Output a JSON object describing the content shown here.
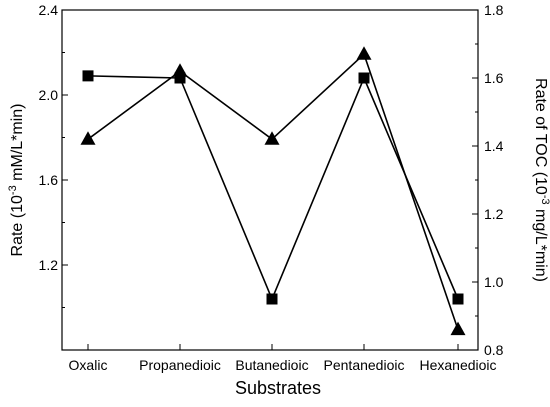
{
  "chart_data": {
    "type": "line",
    "categories": [
      "Oxalic",
      "Propanedioic",
      "Butanedioic",
      "Pentanedioic",
      "Hexanedioic"
    ],
    "xlabel": "Substrates",
    "ylabel_left": {
      "prefix": "Rate (10",
      "sup": "-3",
      "suffix": " mM/L*min)"
    },
    "ylabel_right": {
      "prefix": "Rate of TOC (10",
      "sup": "-3",
      "suffix": " mg/L*min)"
    },
    "ylim_left": [
      0.8,
      2.4
    ],
    "yticks_left": [
      1.2,
      1.6,
      2.0,
      2.4
    ],
    "yticks_left_labels": [
      "1.2",
      "1.6",
      "2.0",
      "2.4"
    ],
    "ylim_right": [
      0.8,
      1.8
    ],
    "yticks_right": [
      0.8,
      1.0,
      1.2,
      1.4,
      1.6,
      1.8
    ],
    "yticks_right_labels": [
      "0.8",
      "1.0",
      "1.2",
      "1.4",
      "1.6",
      "1.8"
    ],
    "grid": false,
    "legend": "none",
    "series": [
      {
        "marker": "square",
        "axis": "left",
        "values": [
          2.09,
          2.08,
          1.04,
          2.08,
          1.04
        ]
      },
      {
        "marker": "triangle",
        "axis": "right",
        "values": [
          1.42,
          1.62,
          1.42,
          1.67,
          0.86
        ]
      }
    ],
    "colors": {
      "line": "#000000",
      "marker": "#000000"
    }
  }
}
